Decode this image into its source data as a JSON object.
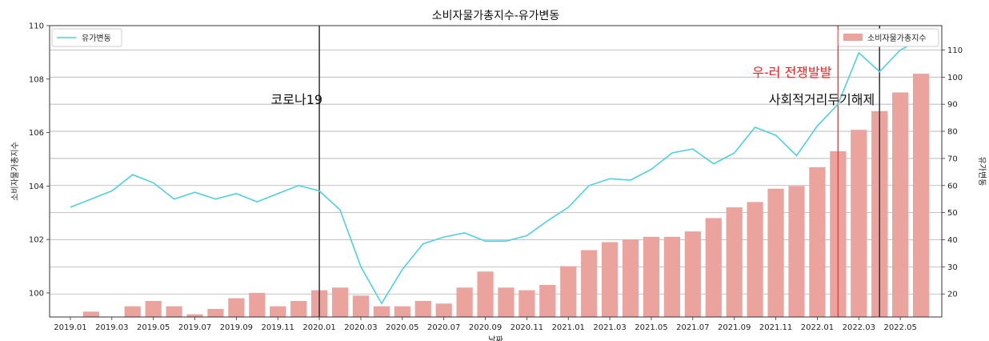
{
  "chart_data": {
    "type": "bar+line",
    "title": "소비자물가총지수-유가변동",
    "xlabel": "날짜",
    "ylabel_left": "소비자물가총지수",
    "ylabel_right": "유가변동",
    "ylim_left": [
      99.1,
      110
    ],
    "ylim_right": [
      11.5,
      119
    ],
    "yticks_left": [
      100,
      102,
      104,
      106,
      108,
      110
    ],
    "yticks_right": [
      20,
      30,
      40,
      50,
      60,
      70,
      80,
      90,
      100,
      110
    ],
    "x": [
      "2019.01",
      "2019.02",
      "2019.03",
      "2019.04",
      "2019.05",
      "2019.06",
      "2019.07",
      "2019.08",
      "2019.09",
      "2019.10",
      "2019.11",
      "2019.12",
      "2020.01",
      "2020.02",
      "2020.03",
      "2020.04",
      "2020.05",
      "2020.06",
      "2020.07",
      "2020.08",
      "2020.09",
      "2020.10",
      "2020.11",
      "2020.12",
      "2021.01",
      "2021.02",
      "2021.03",
      "2021.04",
      "2021.05",
      "2021.06",
      "2021.07",
      "2021.08",
      "2021.09",
      "2021.10",
      "2021.11",
      "2021.12",
      "2022.01",
      "2022.02",
      "2022.03",
      "2022.04",
      "2022.05",
      "2022.06"
    ],
    "x_tick_labels": [
      "2019.01",
      "2019.03",
      "2019.05",
      "2019.07",
      "2019.09",
      "2019.11",
      "2020.01",
      "2020.03",
      "2020.05",
      "2020.07",
      "2020.09",
      "2020.11",
      "2021.01",
      "2021.03",
      "2021.05",
      "2021.07",
      "2021.09",
      "2021.11",
      "2022.01",
      "2022.03",
      "2022.05"
    ],
    "series": [
      {
        "name": "소비자물가총지수",
        "kind": "bar",
        "axis": "left",
        "color": "#eaa39d",
        "values": [
          98.8,
          99.3,
          99.1,
          99.5,
          99.7,
          99.5,
          99.2,
          99.4,
          99.8,
          100.0,
          99.5,
          99.7,
          100.1,
          100.2,
          99.9,
          99.5,
          99.5,
          99.7,
          99.6,
          100.2,
          100.8,
          100.2,
          100.1,
          100.3,
          101.0,
          101.6,
          101.9,
          102.0,
          102.1,
          102.1,
          102.3,
          102.8,
          103.2,
          103.4,
          103.9,
          104.0,
          104.7,
          105.3,
          106.1,
          106.8,
          107.5,
          108.2
        ]
      },
      {
        "name": "유가변동",
        "kind": "line",
        "axis": "right",
        "color": "#4fd0e0",
        "values": [
          52,
          55,
          58,
          64,
          61,
          55,
          57.5,
          55,
          57,
          54,
          57,
          60,
          58,
          51,
          30,
          16.5,
          29,
          38.5,
          41,
          42.5,
          39.5,
          39.5,
          41.5,
          47,
          52,
          60,
          62.5,
          62,
          66,
          72,
          73.5,
          68,
          72,
          81.5,
          78.5,
          71,
          82,
          90,
          109,
          102,
          110,
          114
        ]
      }
    ],
    "vlines": [
      {
        "x": "2020.01",
        "color": "#333333",
        "label": "코로나19",
        "label_color": "#111111"
      },
      {
        "x": "2022.02",
        "color": "#ff3b30",
        "label": "우-러 전쟁발발",
        "label_color": "#ff2222"
      },
      {
        "x": "2022.04",
        "color": "#333333",
        "label": "사회적거리두기해제",
        "label_color": "#111111"
      }
    ],
    "legend_left": {
      "placement": "top-left",
      "label": "유가변동"
    },
    "legend_right": {
      "placement": "top-right",
      "label": "소비자물가총지수"
    },
    "grid": "horizontal"
  }
}
